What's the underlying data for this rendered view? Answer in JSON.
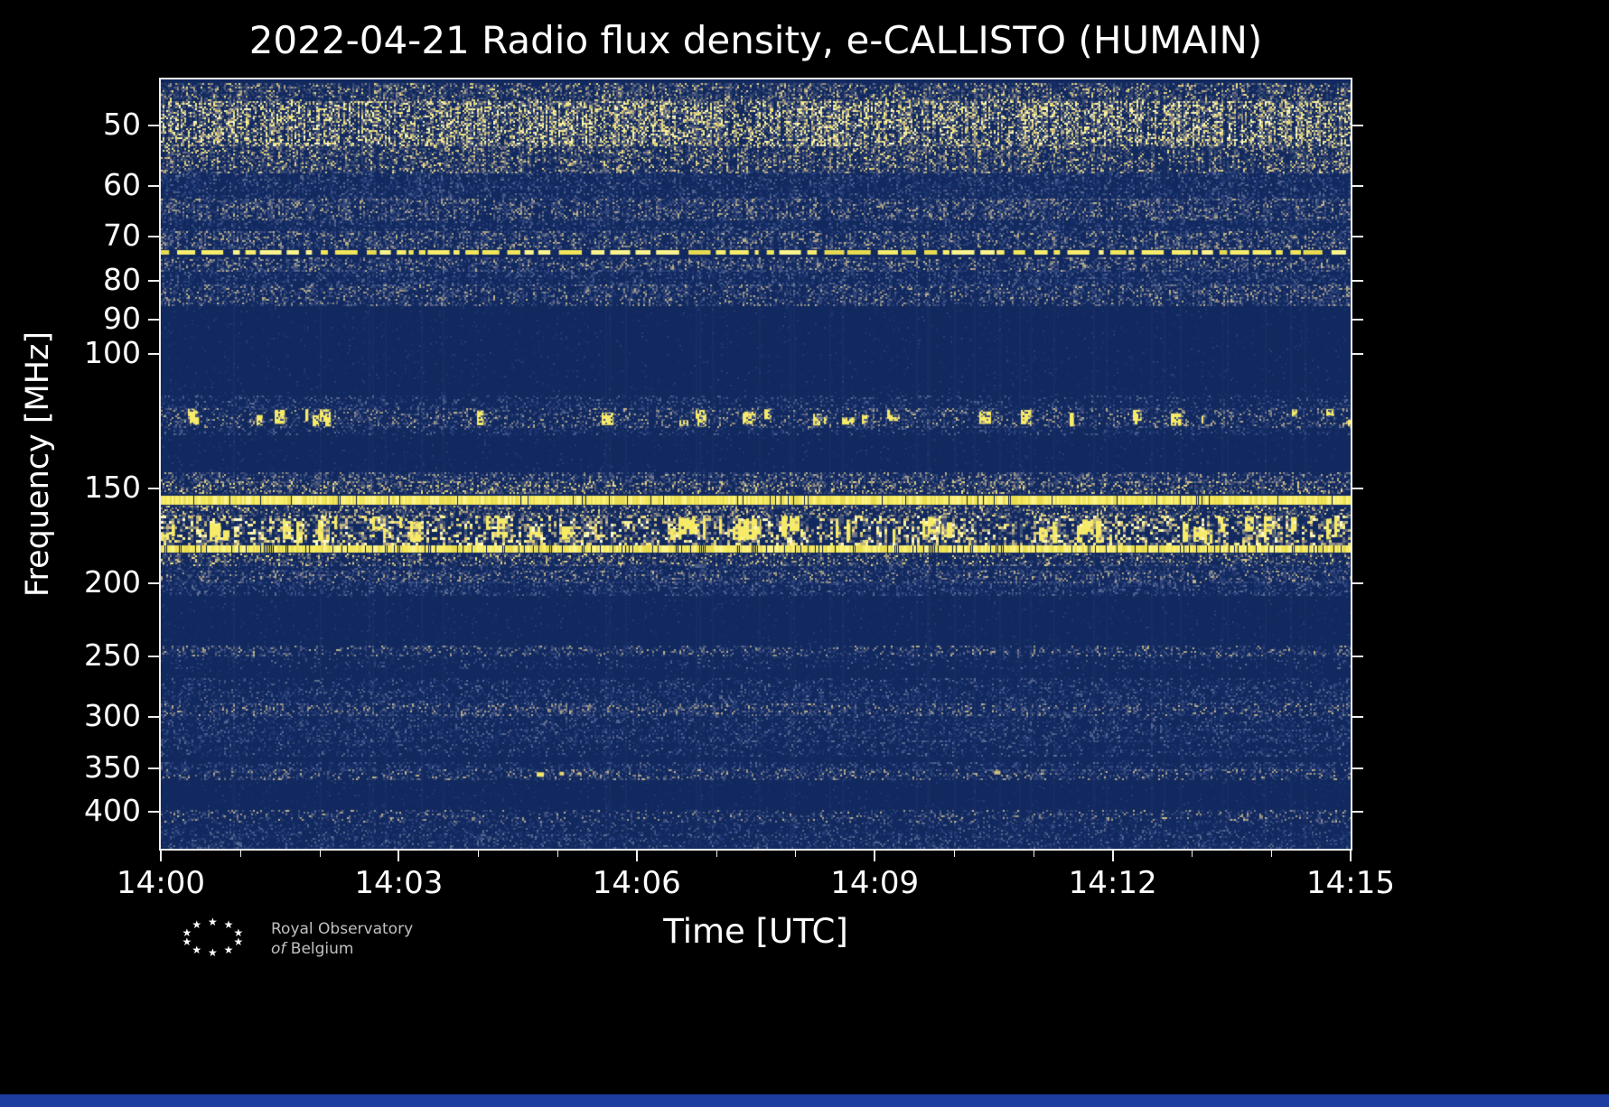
{
  "title": "2022-04-21 Radio flux density, e-CALLISTO (HUMAIN)",
  "x_axis": {
    "label": "Time [UTC]",
    "ticks": [
      "14:00",
      "14:03",
      "14:06",
      "14:09",
      "14:12",
      "14:15"
    ],
    "minutes_per_major": 3
  },
  "y_axis": {
    "label": "Frequency [MHz]",
    "ticks": [
      50,
      60,
      70,
      80,
      90,
      100,
      150,
      200,
      250,
      300,
      350,
      400
    ]
  },
  "logo": {
    "line1": "Royal Observatory",
    "line2_italic": "of",
    "line2_rest": "Belgium",
    "star_glyph": "★",
    "star_count": 10
  },
  "colors": {
    "page_bg": "#000000",
    "frame": "#f0f0f0",
    "text": "#ffffff",
    "logo_text": "#c0c0c0",
    "bottom_strip": "#1d3da0"
  },
  "chart_data": {
    "type": "heatmap",
    "title": "2022-04-21 Radio flux density, e-CALLISTO (HUMAIN)",
    "xlabel": "Time [UTC]",
    "ylabel": "Frequency [MHz]",
    "x_start": "14:00",
    "x_end": "14:15",
    "x_span_minutes": 15,
    "freq_top_mhz": 43.5,
    "freq_bottom_mhz": 447,
    "freq_scale": "log",
    "background": "#12295f",
    "palettes": {
      "faint": [
        "#16306a",
        "#1b356e",
        "#213a72",
        "#273f75"
      ],
      "cool": [
        "#1d3570",
        "#27407a",
        "#334a80",
        "#415586",
        "#50618c",
        "#5f6c90"
      ],
      "gray": [
        "#2c4178",
        "#3f527f",
        "#576383",
        "#717786",
        "#8d8b84",
        "#a9a083",
        "#bfb48a"
      ],
      "warm": [
        "#32466f",
        "#505c7c",
        "#707483",
        "#958f82",
        "#b9ab7f",
        "#dac97e",
        "#f0e085"
      ],
      "hot": [
        "#3e5077",
        "#6c7284",
        "#9c9580",
        "#c5b77d",
        "#e3d479",
        "#f5e97f",
        "#fdf4a0",
        "#fffdc8"
      ],
      "line": [
        "#e8db50",
        "#f2e65a",
        "#f8ee6b",
        "#fcf48c"
      ],
      "blob": "#f6ea67"
    },
    "bands": [
      {
        "f_lo": 44,
        "f_hi": 446,
        "kind": "speckle",
        "density": 0.045,
        "palette": "faint",
        "gamma": 2
      },
      {
        "f_lo": 44,
        "f_hi": 46.5,
        "kind": "speckle",
        "density": 0.5,
        "palette": "warm",
        "gamma": 2.4
      },
      {
        "f_lo": 46.5,
        "f_hi": 53,
        "kind": "speckle",
        "density": 0.62,
        "palette": "hot",
        "gamma": 1.7
      },
      {
        "f_lo": 53,
        "f_hi": 57.5,
        "kind": "speckle",
        "density": 0.5,
        "palette": "warm",
        "gamma": 2.3
      },
      {
        "f_lo": 57.5,
        "f_hi": 62.5,
        "kind": "speckle",
        "density": 0.32,
        "palette": "cool",
        "gamma": 2
      },
      {
        "f_lo": 62.5,
        "f_hi": 66.5,
        "kind": "speckle",
        "density": 0.46,
        "palette": "gray",
        "gamma": 2.3
      },
      {
        "f_lo": 66.5,
        "f_hi": 69,
        "kind": "speckle",
        "density": 0.3,
        "palette": "cool",
        "gamma": 2
      },
      {
        "f_lo": 69,
        "f_hi": 72.5,
        "kind": "speckle",
        "density": 0.46,
        "palette": "gray",
        "gamma": 2.3
      },
      {
        "f_lo": 73,
        "f_hi": 74.2,
        "kind": "dashed",
        "palette": "line"
      },
      {
        "f_lo": 74.6,
        "f_hi": 77.5,
        "kind": "speckle",
        "density": 0.42,
        "palette": "gray",
        "gamma": 2.4
      },
      {
        "f_lo": 77.5,
        "f_hi": 81,
        "kind": "speckle",
        "density": 0.34,
        "palette": "cool",
        "gamma": 2
      },
      {
        "f_lo": 81,
        "f_hi": 86,
        "kind": "speckle",
        "density": 0.4,
        "palette": "gray",
        "gamma": 2.5
      },
      {
        "f_lo": 113.5,
        "f_hi": 118,
        "kind": "speckle",
        "density": 0.22,
        "palette": "cool",
        "gamma": 2
      },
      {
        "f_lo": 118,
        "f_hi": 124.5,
        "kind": "speckle",
        "density": 0.3,
        "palette": "gray",
        "gamma": 2.1,
        "blobs": 0.05
      },
      {
        "f_lo": 124.5,
        "f_hi": 127.5,
        "kind": "speckle",
        "density": 0.2,
        "palette": "cool",
        "gamma": 2
      },
      {
        "f_lo": 143,
        "f_hi": 147,
        "kind": "speckle",
        "density": 0.4,
        "palette": "gray",
        "gamma": 2.2
      },
      {
        "f_lo": 147,
        "f_hi": 152.5,
        "kind": "speckle",
        "density": 0.46,
        "palette": "warm",
        "gamma": 2.1
      },
      {
        "f_lo": 153.5,
        "f_hi": 157.5,
        "kind": "line",
        "palette": "line",
        "notch": 0.07
      },
      {
        "f_lo": 158.5,
        "f_hi": 163,
        "kind": "speckle",
        "density": 0.42,
        "palette": "warm",
        "gamma": 2.1
      },
      {
        "f_lo": 163,
        "f_hi": 177,
        "kind": "speckle",
        "density": 0.5,
        "palette": "hot",
        "gamma": 1.55,
        "cell": 3,
        "blobs": 0.12
      },
      {
        "f_lo": 178.5,
        "f_hi": 182,
        "kind": "line",
        "palette": "line",
        "notch": 0.2
      },
      {
        "f_lo": 183,
        "f_hi": 189,
        "kind": "speckle",
        "density": 0.4,
        "palette": "warm",
        "gamma": 2.3
      },
      {
        "f_lo": 189,
        "f_hi": 193,
        "kind": "speckle",
        "density": 0.3,
        "palette": "cool",
        "gamma": 2
      },
      {
        "f_lo": 193,
        "f_hi": 199,
        "kind": "speckle",
        "density": 0.42,
        "palette": "gray",
        "gamma": 2.4
      },
      {
        "f_lo": 199,
        "f_hi": 207,
        "kind": "speckle",
        "density": 0.34,
        "palette": "cool",
        "gamma": 2.1
      },
      {
        "f_lo": 242,
        "f_hi": 249,
        "kind": "speckle",
        "density": 0.3,
        "palette": "gray",
        "gamma": 2.5
      },
      {
        "f_lo": 250,
        "f_hi": 258,
        "kind": "speckle",
        "density": 0.12,
        "palette": "cool",
        "gamma": 2
      },
      {
        "f_lo": 267,
        "f_hi": 278,
        "kind": "speckle",
        "density": 0.22,
        "palette": "cool",
        "gamma": 2
      },
      {
        "f_lo": 278,
        "f_hi": 288,
        "kind": "speckle",
        "density": 0.28,
        "palette": "cool",
        "gamma": 2
      },
      {
        "f_lo": 288,
        "f_hi": 298,
        "kind": "speckle",
        "density": 0.38,
        "palette": "gray",
        "gamma": 2.5
      },
      {
        "f_lo": 298,
        "f_hi": 312,
        "kind": "speckle",
        "density": 0.26,
        "palette": "cool",
        "gamma": 2
      },
      {
        "f_lo": 312,
        "f_hi": 322,
        "kind": "speckle",
        "density": 0.3,
        "palette": "cool",
        "gamma": 2.2
      },
      {
        "f_lo": 322,
        "f_hi": 337,
        "kind": "speckle",
        "density": 0.2,
        "palette": "cool",
        "gamma": 2
      },
      {
        "f_lo": 344,
        "f_hi": 352,
        "kind": "speckle",
        "density": 0.28,
        "palette": "cool",
        "gamma": 2
      },
      {
        "f_lo": 352,
        "f_hi": 362,
        "kind": "speckle",
        "density": 0.34,
        "palette": "gray",
        "gamma": 2.6
      },
      {
        "f_lo": 398,
        "f_hi": 412,
        "kind": "speckle",
        "density": 0.26,
        "palette": "gray",
        "gamma": 2.7
      },
      {
        "f_lo": 414,
        "f_hi": 428,
        "kind": "speckle",
        "density": 0.22,
        "palette": "cool",
        "gamma": 2.1
      },
      {
        "f_lo": 428,
        "f_hi": 446,
        "kind": "speckle",
        "density": 0.3,
        "palette": "cool",
        "gamma": 2.2
      }
    ],
    "events": [
      {
        "t_frac": 0.319,
        "f_mhz": 357,
        "w": 8,
        "h": 5,
        "color": "#f3e76a"
      },
      {
        "t_frac": 0.337,
        "f_mhz": 356,
        "w": 5,
        "h": 4,
        "color": "#e8db6e"
      },
      {
        "t_frac": 0.352,
        "f_mhz": 356,
        "w": 4,
        "h": 3,
        "color": "#cfc183"
      },
      {
        "t_frac": 0.703,
        "f_mhz": 355,
        "w": 7,
        "h": 4,
        "color": "#cdbd7e"
      }
    ]
  }
}
